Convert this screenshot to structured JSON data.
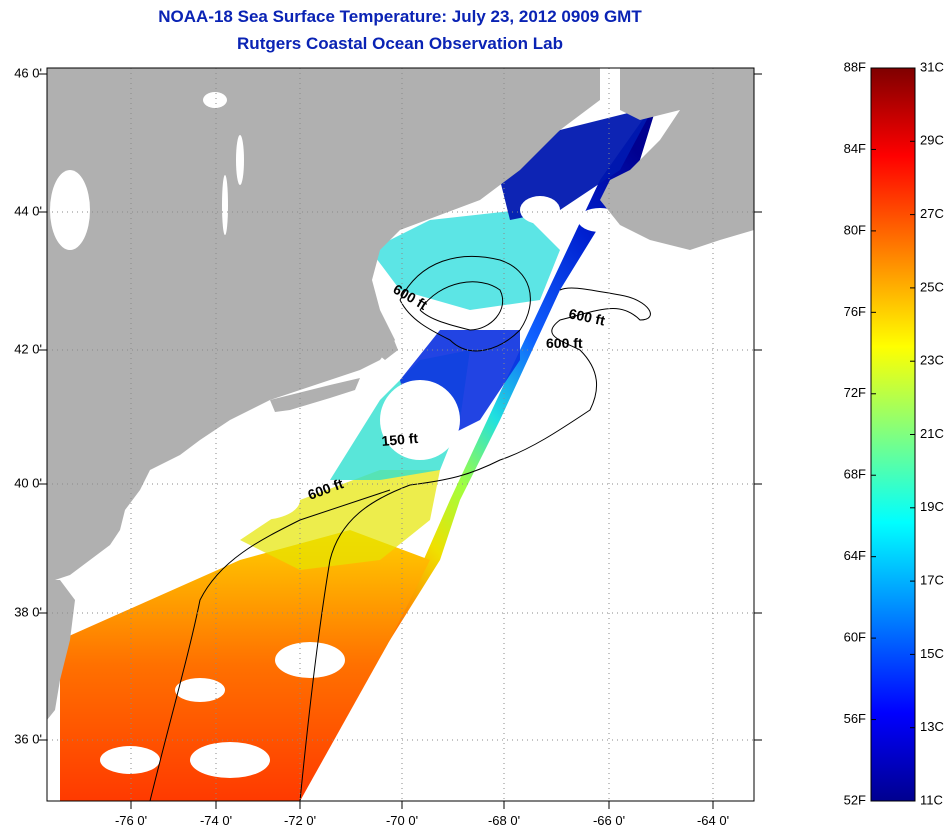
{
  "title": "NOAA-18 Sea Surface Temperature:  July 23, 2012 0909 GMT",
  "subtitle": "Rutgers Coastal Ocean Observation Lab",
  "map": {
    "lat_labels": [
      "46 0'",
      "44 0'",
      "42 0'",
      "40 0'",
      "38 0'",
      "36 0'"
    ],
    "lon_labels": [
      "-76 0'",
      "-74 0'",
      "-72 0'",
      "-70 0'",
      "-68 0'",
      "-66 0'",
      "-64 0'"
    ],
    "contour_labels": [
      "600 ft",
      "600 ft",
      "600 ft",
      "150 ft",
      "600 ft"
    ],
    "colors": {
      "land": "#b0b0b0",
      "no_data": "#ffffff",
      "grid": "#8a8a8a"
    }
  },
  "colorbar": {
    "f_labels": [
      "88F",
      "84F",
      "80F",
      "76F",
      "72F",
      "68F",
      "64F",
      "60F",
      "56F",
      "52F"
    ],
    "c_labels": [
      "31C",
      "29C",
      "27C",
      "25C",
      "23C",
      "21C",
      "19C",
      "17C",
      "15C",
      "13C",
      "11C"
    ],
    "gradient": [
      "#7f0000",
      "#ff0000",
      "#ff8000",
      "#ffff00",
      "#80ff80",
      "#00ffff",
      "#0080ff",
      "#0000ff",
      "#00008f"
    ]
  }
}
